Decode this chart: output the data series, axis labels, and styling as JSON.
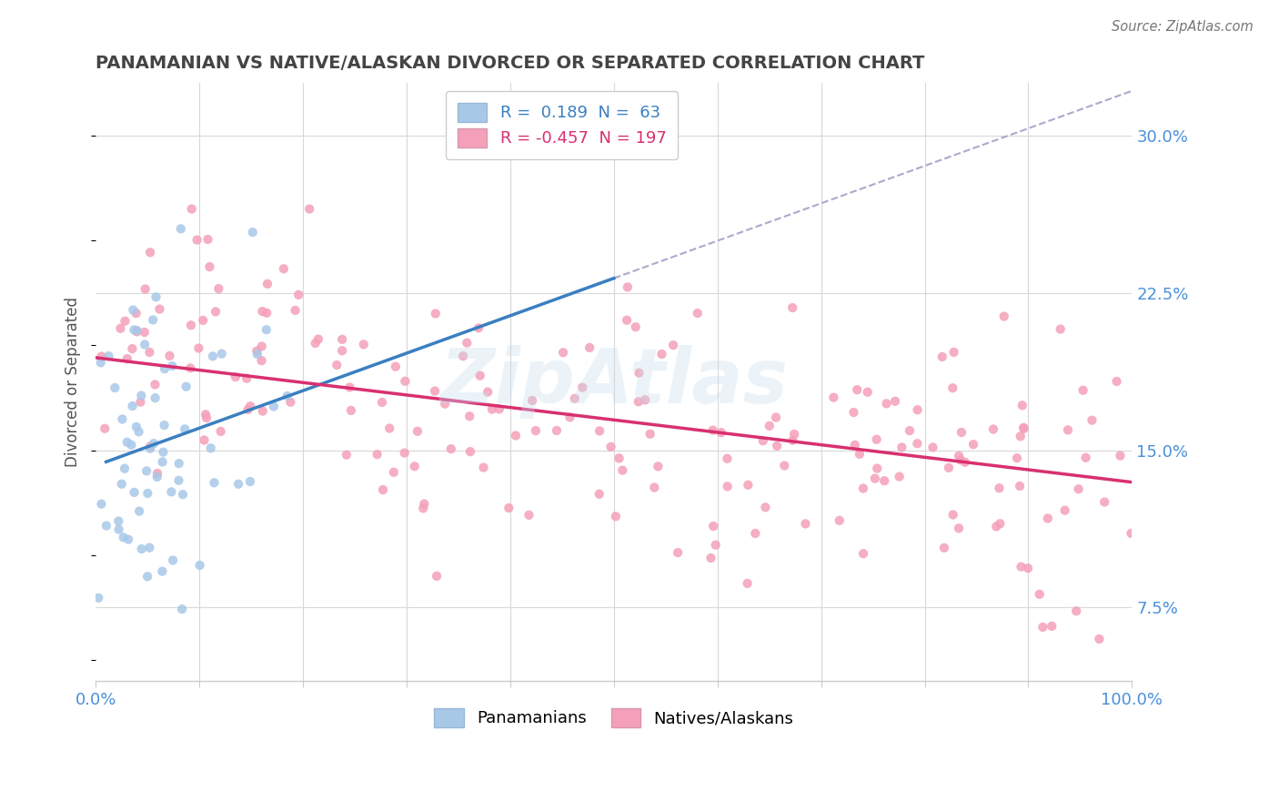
{
  "title": "PANAMANIAN VS NATIVE/ALASKAN DIVORCED OR SEPARATED CORRELATION CHART",
  "source_text": "Source: ZipAtlas.com",
  "ylabel": "Divorced or Separated",
  "xlim": [
    0.0,
    1.0
  ],
  "ylim": [
    0.04,
    0.325
  ],
  "yticks": [
    0.075,
    0.15,
    0.225,
    0.3
  ],
  "ytick_labels": [
    "7.5%",
    "15.0%",
    "22.5%",
    "30.0%"
  ],
  "blue_color": "#a8c8e8",
  "blue_line_color": "#3a7fc1",
  "pink_color": "#f4a0b8",
  "pink_line_color": "#d93070",
  "blue_R": 0.189,
  "blue_N": 63,
  "pink_R": -0.457,
  "pink_N": 197,
  "legend_label_blue": "Panamanians",
  "legend_label_pink": "Natives/Alaskans",
  "watermark": "ZipAtlas",
  "background_color": "#ffffff",
  "grid_color": "#d8d8d8",
  "title_color": "#444444",
  "axis_tick_color": "#4a90d9",
  "ylabel_color": "#555555"
}
